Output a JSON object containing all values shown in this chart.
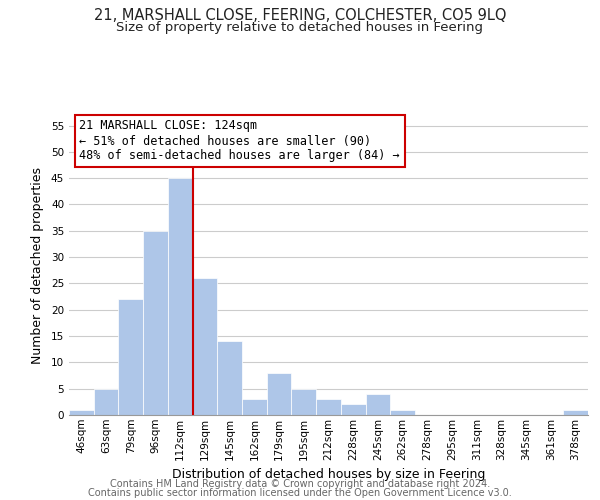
{
  "title": "21, MARSHALL CLOSE, FEERING, COLCHESTER, CO5 9LQ",
  "subtitle": "Size of property relative to detached houses in Feering",
  "xlabel": "Distribution of detached houses by size in Feering",
  "ylabel": "Number of detached properties",
  "bar_color": "#aec6e8",
  "grid_color": "#cccccc",
  "vline_color": "#cc0000",
  "vline_x_idx": 4,
  "bin_labels": [
    "46sqm",
    "63sqm",
    "79sqm",
    "96sqm",
    "112sqm",
    "129sqm",
    "145sqm",
    "162sqm",
    "179sqm",
    "195sqm",
    "212sqm",
    "228sqm",
    "245sqm",
    "262sqm",
    "278sqm",
    "295sqm",
    "311sqm",
    "328sqm",
    "345sqm",
    "361sqm",
    "378sqm"
  ],
  "bar_heights": [
    1,
    5,
    22,
    35,
    45,
    26,
    14,
    3,
    8,
    5,
    3,
    2,
    4,
    1,
    0,
    0,
    0,
    0,
    0,
    0,
    1
  ],
  "ylim": [
    0,
    57
  ],
  "yticks": [
    0,
    5,
    10,
    15,
    20,
    25,
    30,
    35,
    40,
    45,
    50,
    55
  ],
  "annotation_line1": "21 MARSHALL CLOSE: 124sqm",
  "annotation_line2": "← 51% of detached houses are smaller (90)",
  "annotation_line3": "48% of semi-detached houses are larger (84) →",
  "footer1": "Contains HM Land Registry data © Crown copyright and database right 2024.",
  "footer2": "Contains public sector information licensed under the Open Government Licence v3.0.",
  "title_fontsize": 10.5,
  "subtitle_fontsize": 9.5,
  "annotation_fontsize": 8.5,
  "axis_label_fontsize": 9,
  "tick_fontsize": 7.5,
  "footer_fontsize": 7
}
